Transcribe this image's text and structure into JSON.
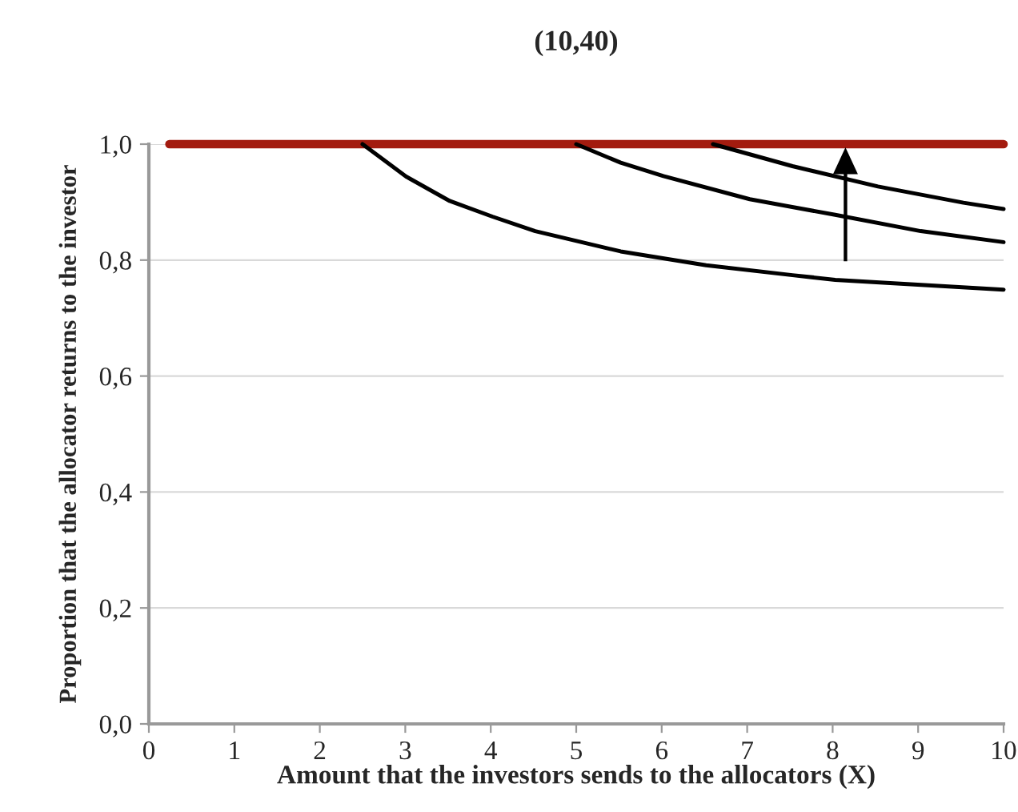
{
  "chart_data": {
    "type": "line",
    "title": "(10,40)",
    "xlabel": "Amount that the investors sends to the allocators (X)",
    "ylabel": "Proportion that the allocator returns to the investor",
    "series": [
      {
        "color": "#a31b0f",
        "x": [
          0.24,
          10
        ],
        "values": [
          1.0,
          1.0
        ]
      },
      {
        "color": "#000000",
        "x": [
          2.5,
          3.01,
          3.52,
          4.02,
          4.52,
          5.52,
          6.52,
          7.53,
          8.03,
          10.0
        ],
        "values": [
          1.0,
          0.944,
          0.902,
          0.875,
          0.85,
          0.815,
          0.791,
          0.774,
          0.766,
          0.749
        ]
      },
      {
        "color": "#000000",
        "x": [
          5.0,
          5.52,
          6.02,
          7.03,
          8.03,
          9.03,
          10.0
        ],
        "values": [
          1.0,
          0.968,
          0.945,
          0.905,
          0.878,
          0.85,
          0.831
        ]
      },
      {
        "color": "#000000",
        "x": [
          6.6,
          7.53,
          8.53,
          9.53,
          10.0
        ],
        "values": [
          1.0,
          0.962,
          0.927,
          0.899,
          0.888
        ]
      }
    ],
    "xlim": [
      0,
      10
    ],
    "xticks": [
      0,
      1,
      2,
      3,
      4,
      5,
      6,
      7,
      8,
      9,
      10
    ],
    "ylim": [
      0,
      1.0
    ],
    "yticks": [
      {
        "value": 0,
        "label": "0,0"
      },
      {
        "value": 0.2,
        "label": "0,2"
      },
      {
        "value": 0.4,
        "label": "0,4"
      },
      {
        "value": 0.6,
        "label": "0,6"
      },
      {
        "value": 0.8,
        "label": "0,8"
      },
      {
        "value": 1.0,
        "label": "1,0"
      }
    ],
    "grid": "y",
    "marker": "none",
    "line_style": "solid",
    "legend": false
  }
}
